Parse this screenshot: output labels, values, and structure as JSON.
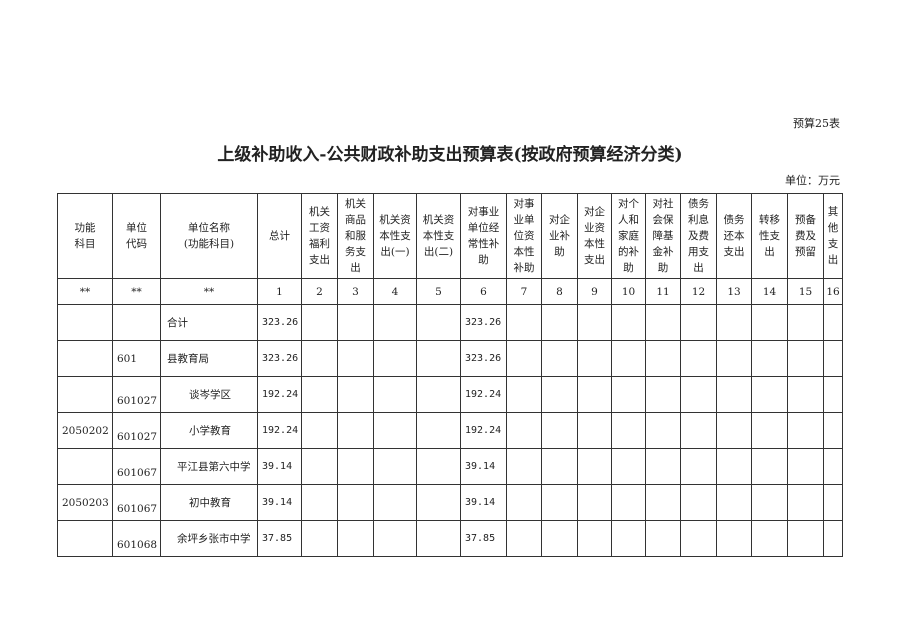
{
  "table_no": "预算25表",
  "title": "上级补助收入-公共财政补助支出预算表(按政府预算经济分类)",
  "unit": "单位：万元",
  "headers": [
    "功能\n科目",
    "单位\n代码",
    "单位名称\n(功能科目)",
    "总计",
    "机关\n工资\n福利\n支出",
    "机关\n商品\n和服\n务支\n出",
    "机关资\n本性支\n出(一)",
    "机关资\n本性支\n出(二)",
    "对事业\n单位经\n常性补\n助",
    "对事\n业单\n位资\n本性\n补助",
    "对企\n业补\n助",
    "对企\n业资\n本性\n支出",
    "对个\n人和\n家庭\n的补\n助",
    "对社\n会保\n障基\n金补\n助",
    "债务\n利息\n及费\n用支\n出",
    "债务\n还本\n支出",
    "转移\n性支\n出",
    "预备\n费及\n预留",
    "其\n他\n支\n出"
  ],
  "numbers": [
    "**",
    "**",
    "**",
    "1",
    "2",
    "3",
    "4",
    "5",
    "6",
    "7",
    "8",
    "9",
    "10",
    "11",
    "12",
    "13",
    "14",
    "15",
    "16"
  ],
  "rows": [
    {
      "func": "",
      "code": "",
      "name": "合计",
      "total": "323.26",
      "c6": "323.26"
    },
    {
      "func": "",
      "code": "601",
      "name": "县教育局",
      "total": "323.26",
      "c6": "323.26"
    },
    {
      "func": "",
      "code": "601027",
      "name": "谈岑学区",
      "total": "192.24",
      "c6": "192.24"
    },
    {
      "func": "2050202",
      "code": "601027",
      "name": "小学教育",
      "total": "192.24",
      "c6": "192.24"
    },
    {
      "func": "",
      "code": "601067",
      "name": "平江县第六中学",
      "total": "39.14",
      "c6": "39.14"
    },
    {
      "func": "2050203",
      "code": "601067",
      "name": "初中教育",
      "total": "39.14",
      "c6": "39.14"
    },
    {
      "func": "",
      "code": "601068",
      "name": "余坪乡张市中学",
      "total": "37.85",
      "c6": "37.85"
    }
  ]
}
